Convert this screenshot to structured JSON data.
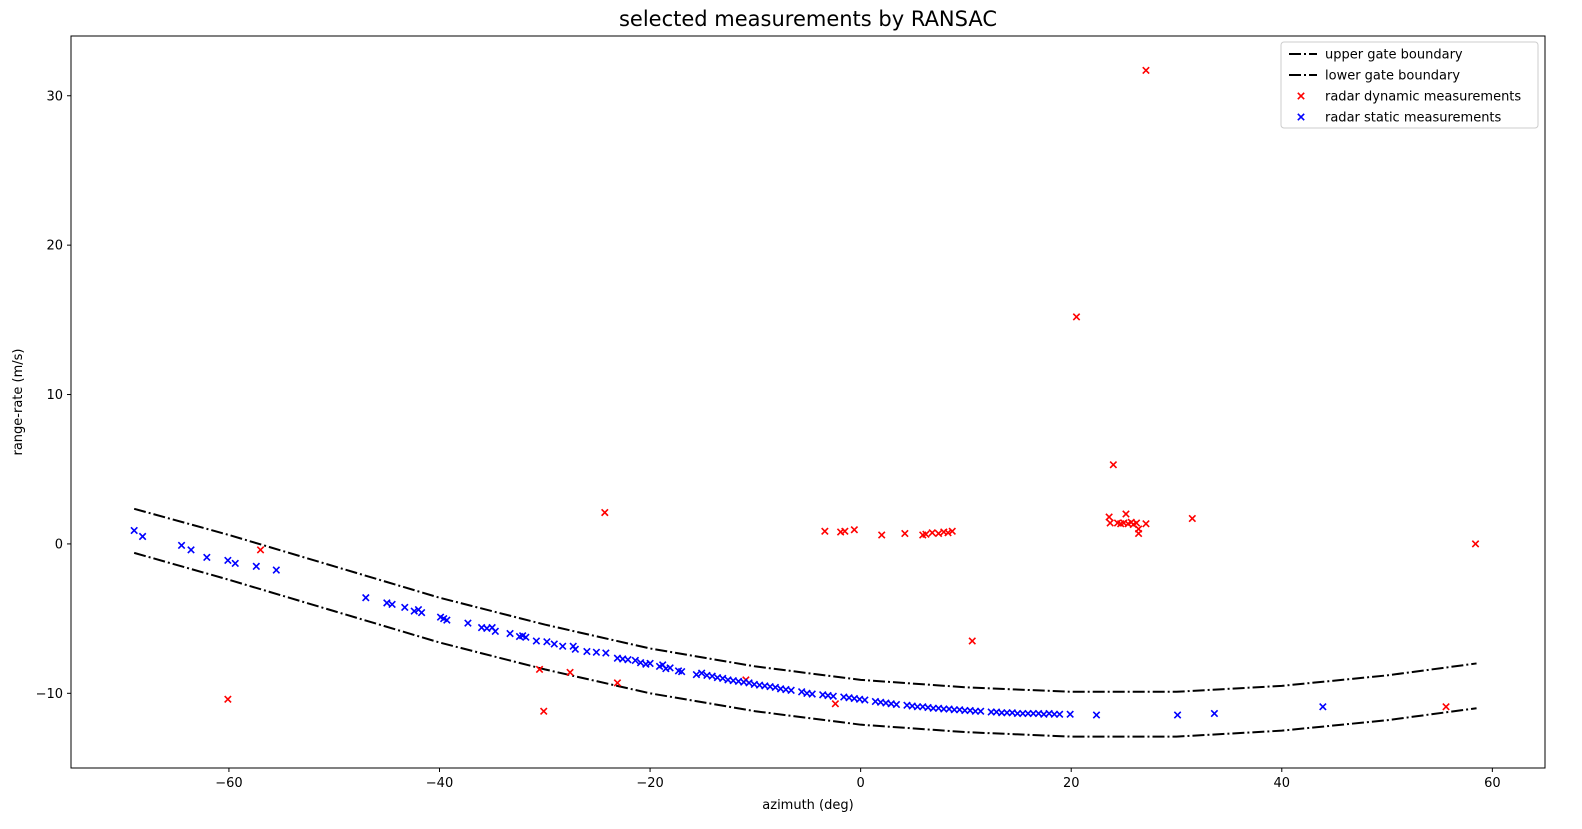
{
  "chart_data": {
    "type": "scatter",
    "title": "selected measurements by RANSAC",
    "xlabel": "azimuth (deg)",
    "ylabel": "range-rate (m/s)",
    "xlim": [
      -75,
      65
    ],
    "ylim": [
      -15,
      34
    ],
    "xticks": [
      -60,
      -40,
      -20,
      0,
      20,
      40,
      60
    ],
    "yticks": [
      -10,
      0,
      10,
      20,
      30
    ],
    "grid": false,
    "legend_position": "top-right",
    "series": [
      {
        "name": "upper gate boundary",
        "kind": "line",
        "style": "dashdot",
        "color": "#000000",
        "points": [
          [
            -69,
            2.35
          ],
          [
            -60,
            0.6
          ],
          [
            -50,
            -1.5
          ],
          [
            -40,
            -3.6
          ],
          [
            -30,
            -5.4
          ],
          [
            -20,
            -7.0
          ],
          [
            -10,
            -8.2
          ],
          [
            0,
            -9.1
          ],
          [
            10,
            -9.6
          ],
          [
            20,
            -9.9
          ],
          [
            30,
            -9.9
          ],
          [
            40,
            -9.5
          ],
          [
            50,
            -8.8
          ],
          [
            58.5,
            -8.0
          ]
        ]
      },
      {
        "name": "lower gate boundary",
        "kind": "line",
        "style": "dashdot",
        "color": "#000000",
        "points": [
          [
            -69,
            -0.6
          ],
          [
            -60,
            -2.4
          ],
          [
            -50,
            -4.5
          ],
          [
            -40,
            -6.6
          ],
          [
            -30,
            -8.4
          ],
          [
            -20,
            -10.0
          ],
          [
            -10,
            -11.2
          ],
          [
            0,
            -12.1
          ],
          [
            10,
            -12.6
          ],
          [
            20,
            -12.9
          ],
          [
            30,
            -12.9
          ],
          [
            40,
            -12.5
          ],
          [
            50,
            -11.8
          ],
          [
            58.5,
            -11.0
          ]
        ]
      },
      {
        "name": "radar dynamic measurements",
        "kind": "scatter",
        "marker": "x",
        "color": "#ff0000",
        "points": [
          [
            -60.1,
            -10.4
          ],
          [
            -57,
            -0.4
          ],
          [
            -30.5,
            -8.4
          ],
          [
            -30.1,
            -11.2
          ],
          [
            -27.6,
            -8.6
          ],
          [
            -24.3,
            2.1
          ],
          [
            -23.1,
            -9.3
          ],
          [
            -10.9,
            -9.1
          ],
          [
            -2.4,
            -10.7
          ],
          [
            -3.4,
            0.85
          ],
          [
            -1.9,
            0.8
          ],
          [
            -1.5,
            0.85
          ],
          [
            -0.6,
            0.95
          ],
          [
            2.0,
            0.6
          ],
          [
            4.2,
            0.7
          ],
          [
            5.9,
            0.6
          ],
          [
            6.2,
            0.65
          ],
          [
            6.8,
            0.75
          ],
          [
            7.4,
            0.7
          ],
          [
            7.9,
            0.8
          ],
          [
            8.3,
            0.75
          ],
          [
            8.7,
            0.85
          ],
          [
            10.6,
            -6.5
          ],
          [
            20.5,
            15.2
          ],
          [
            23.6,
            1.8
          ],
          [
            23.7,
            1.4
          ],
          [
            24.0,
            5.3
          ],
          [
            24.4,
            1.4
          ],
          [
            24.7,
            1.35
          ],
          [
            25.0,
            1.4
          ],
          [
            25.2,
            2.0
          ],
          [
            25.4,
            1.35
          ],
          [
            25.7,
            1.45
          ],
          [
            25.9,
            1.3
          ],
          [
            26.2,
            1.4
          ],
          [
            26.4,
            1.0
          ],
          [
            26.4,
            0.7
          ],
          [
            27.1,
            1.35
          ],
          [
            27.1,
            31.7
          ],
          [
            31.5,
            1.7
          ],
          [
            55.6,
            -10.9
          ],
          [
            58.4,
            0.0
          ]
        ]
      },
      {
        "name": "radar static measurements",
        "kind": "scatter",
        "marker": "x",
        "color": "#0000ff",
        "points": [
          [
            -69,
            0.9
          ],
          [
            -68.2,
            0.5
          ],
          [
            -64.5,
            -0.1
          ],
          [
            -63.6,
            -0.4
          ],
          [
            -62.1,
            -0.9
          ],
          [
            -60.1,
            -1.1
          ],
          [
            -59.4,
            -1.3
          ],
          [
            -57.4,
            -1.5
          ],
          [
            -55.5,
            -1.75
          ],
          [
            -47,
            -3.6
          ],
          [
            -45,
            -3.95
          ],
          [
            -44.5,
            -4.05
          ],
          [
            -43.3,
            -4.25
          ],
          [
            -42.4,
            -4.5
          ],
          [
            -42,
            -4.4
          ],
          [
            -41.7,
            -4.6
          ],
          [
            -39.9,
            -4.9
          ],
          [
            -39.6,
            -5.0
          ],
          [
            -39.3,
            -5.1
          ],
          [
            -37.3,
            -5.3
          ],
          [
            -36,
            -5.6
          ],
          [
            -35.5,
            -5.65
          ],
          [
            -35,
            -5.6
          ],
          [
            -34.7,
            -5.85
          ],
          [
            -33.3,
            -6.0
          ],
          [
            -32.4,
            -6.2
          ],
          [
            -32.1,
            -6.15
          ],
          [
            -31.8,
            -6.25
          ],
          [
            -30.8,
            -6.5
          ],
          [
            -29.8,
            -6.55
          ],
          [
            -29.1,
            -6.7
          ],
          [
            -28.3,
            -6.85
          ],
          [
            -27.3,
            -6.85
          ],
          [
            -27.1,
            -7.05
          ],
          [
            -26,
            -7.2
          ],
          [
            -25.1,
            -7.25
          ],
          [
            -24.2,
            -7.3
          ],
          [
            -23.1,
            -7.65
          ],
          [
            -22.6,
            -7.7
          ],
          [
            -22.1,
            -7.75
          ],
          [
            -21.4,
            -7.8
          ],
          [
            -20.9,
            -7.95
          ],
          [
            -20.4,
            -8.05
          ],
          [
            -20.0,
            -8.0
          ],
          [
            -19.1,
            -8.2
          ],
          [
            -18.8,
            -8.1
          ],
          [
            -18.5,
            -8.35
          ],
          [
            -18.1,
            -8.3
          ],
          [
            -17.3,
            -8.5
          ],
          [
            -17.0,
            -8.55
          ],
          [
            -15.6,
            -8.75
          ],
          [
            -15.1,
            -8.65
          ],
          [
            -14.6,
            -8.8
          ],
          [
            -14.1,
            -8.85
          ],
          [
            -13.6,
            -8.95
          ],
          [
            -13.1,
            -9.0
          ],
          [
            -12.6,
            -9.1
          ],
          [
            -12.1,
            -9.15
          ],
          [
            -11.6,
            -9.2
          ],
          [
            -11.1,
            -9.25
          ],
          [
            -10.6,
            -9.3
          ],
          [
            -10.1,
            -9.4
          ],
          [
            -9.6,
            -9.45
          ],
          [
            -9.1,
            -9.5
          ],
          [
            -8.6,
            -9.55
          ],
          [
            -8.1,
            -9.6
          ],
          [
            -7.6,
            -9.7
          ],
          [
            -7.1,
            -9.75
          ],
          [
            -6.6,
            -9.8
          ],
          [
            -5.6,
            -9.9
          ],
          [
            -5.1,
            -10.0
          ],
          [
            -4.6,
            -10.05
          ],
          [
            -3.6,
            -10.1
          ],
          [
            -3.1,
            -10.15
          ],
          [
            -2.6,
            -10.2
          ],
          [
            -1.6,
            -10.25
          ],
          [
            -1.1,
            -10.3
          ],
          [
            -0.6,
            -10.35
          ],
          [
            -0.1,
            -10.4
          ],
          [
            0.4,
            -10.45
          ],
          [
            1.4,
            -10.55
          ],
          [
            1.9,
            -10.6
          ],
          [
            2.4,
            -10.65
          ],
          [
            2.9,
            -10.7
          ],
          [
            3.4,
            -10.75
          ],
          [
            4.4,
            -10.8
          ],
          [
            4.9,
            -10.85
          ],
          [
            5.4,
            -10.9
          ],
          [
            5.9,
            -10.9
          ],
          [
            6.4,
            -10.95
          ],
          [
            6.9,
            -11.0
          ],
          [
            7.4,
            -11.0
          ],
          [
            7.9,
            -11.05
          ],
          [
            8.4,
            -11.05
          ],
          [
            8.9,
            -11.1
          ],
          [
            9.4,
            -11.1
          ],
          [
            9.9,
            -11.15
          ],
          [
            10.4,
            -11.15
          ],
          [
            10.9,
            -11.2
          ],
          [
            11.4,
            -11.2
          ],
          [
            12.4,
            -11.25
          ],
          [
            12.9,
            -11.25
          ],
          [
            13.4,
            -11.3
          ],
          [
            13.9,
            -11.3
          ],
          [
            14.4,
            -11.3
          ],
          [
            14.9,
            -11.35
          ],
          [
            15.4,
            -11.35
          ],
          [
            15.9,
            -11.35
          ],
          [
            16.4,
            -11.35
          ],
          [
            16.9,
            -11.35
          ],
          [
            17.4,
            -11.4
          ],
          [
            17.9,
            -11.35
          ],
          [
            18.4,
            -11.4
          ],
          [
            18.9,
            -11.4
          ],
          [
            19.9,
            -11.4
          ],
          [
            22.4,
            -11.45
          ],
          [
            30.1,
            -11.45
          ],
          [
            33.6,
            -11.35
          ],
          [
            43.9,
            -10.9
          ]
        ]
      }
    ]
  }
}
